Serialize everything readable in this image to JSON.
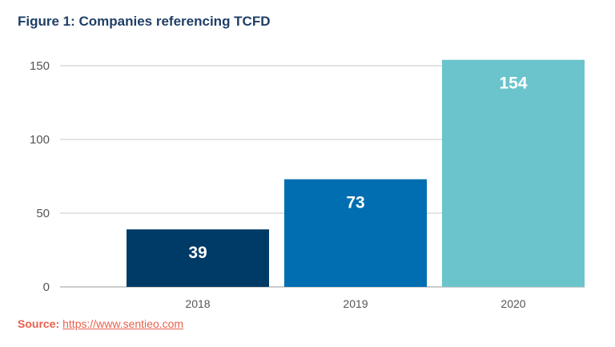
{
  "chart_data": {
    "type": "bar",
    "title": "Figure 1: Companies referencing TCFD",
    "categories": [
      "2018",
      "2019",
      "2020"
    ],
    "values": [
      39,
      73,
      154
    ],
    "data_labels": [
      "39",
      "73",
      "154"
    ],
    "bar_colors": [
      "#003a66",
      "#006eb0",
      "#6bc4cc"
    ],
    "yticks": [
      0,
      50,
      100,
      150
    ],
    "ylim": [
      0,
      154
    ],
    "grid": true,
    "xlabel": "",
    "ylabel": ""
  },
  "source": {
    "label": "Source:",
    "link": "https://www.sentieo.com"
  }
}
